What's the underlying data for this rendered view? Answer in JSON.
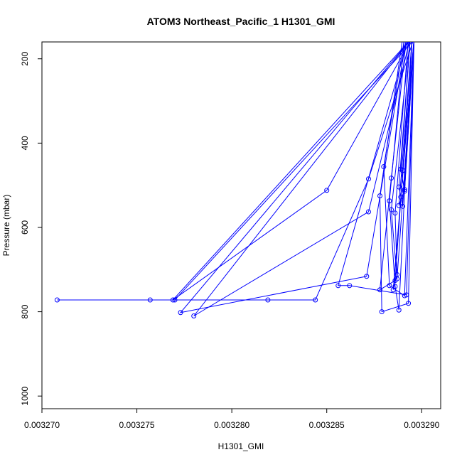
{
  "chart_data": {
    "type": "line",
    "title": "ATOM3 Northeast_Pacific_1 H1301_GMI",
    "xlabel": "H1301_GMI",
    "ylabel": "Pressure (mbar)",
    "xlim": [
      0.00327,
      0.003291
    ],
    "ylim": [
      1030,
      160
    ],
    "y_reversed": true,
    "x_ticks": [
      "0.003270",
      "0.003275",
      "0.003280",
      "0.003285",
      "0.003290"
    ],
    "x_tick_values": [
      0.00327,
      0.003275,
      0.00328,
      0.003285,
      0.00329
    ],
    "y_ticks": [
      "200",
      "400",
      "600",
      "800",
      "1000"
    ],
    "y_tick_values": [
      200,
      400,
      600,
      800,
      1000
    ],
    "series_color": "#0000ff",
    "grid": false,
    "marker": "open-circle",
    "series": [
      {
        "x": [
          0.0032897,
          0.003277,
          0.0032708,
          0.0032757,
          0.0032819,
          0.0032844,
          0.0032872,
          0.0032896
        ],
        "y": [
          150,
          772,
          772,
          772,
          772,
          772,
          485,
          150
        ]
      },
      {
        "x": [
          0.0032895,
          0.003285,
          0.0032769,
          0.0032895
        ],
        "y": [
          150,
          512,
          772,
          150
        ]
      },
      {
        "x": [
          0.0032894,
          0.0032872,
          0.003278,
          0.0032895
        ],
        "y": [
          150,
          563,
          810,
          150
        ]
      },
      {
        "x": [
          0.0032893,
          0.0032856,
          0.0032862,
          0.0032892,
          0.0032896
        ],
        "y": [
          150,
          738,
          738,
          760,
          150
        ]
      },
      {
        "x": [
          0.0032892,
          0.0032871,
          0.0032773,
          0.0032895
        ],
        "y": [
          150,
          716,
          802,
          150
        ]
      },
      {
        "x": [
          0.0032891,
          0.003288,
          0.0032883,
          0.0032891,
          0.0032896
        ],
        "y": [
          150,
          456,
          738,
          762,
          150
        ]
      },
      {
        "x": [
          0.003289,
          0.0032878,
          0.0032879,
          0.0032893,
          0.0032896
        ],
        "y": [
          150,
          525,
          800,
          780,
          150
        ]
      },
      {
        "x": [
          0.0032891,
          0.0032883,
          0.0032886,
          0.0032888,
          0.0032895
        ],
        "y": [
          150,
          537,
          740,
          796,
          150
        ]
      },
      {
        "x": [
          0.0032892,
          0.0032884,
          0.0032878,
          0.0032886,
          0.0032895
        ],
        "y": [
          150,
          483,
          748,
          726,
          150
        ]
      },
      {
        "x": [
          0.0032893,
          0.0032886,
          0.0032887,
          0.0032885,
          0.0032896
        ],
        "y": [
          150,
          566,
          712,
          748,
          150
        ]
      },
      {
        "x": [
          0.0032894,
          0.0032889,
          0.0032891,
          0.0032896
        ],
        "y": [
          150,
          462,
          514,
          150
        ]
      },
      {
        "x": [
          0.0032894,
          0.0032888,
          0.003289,
          0.0032896
        ],
        "y": [
          150,
          504,
          550,
          150
        ]
      },
      {
        "x": [
          0.0032895,
          0.003289,
          0.0032889,
          0.0032896
        ],
        "y": [
          150,
          465,
          528,
          150
        ]
      },
      {
        "x": [
          0.0032894,
          0.0032884,
          0.0032887,
          0.0032896
        ],
        "y": [
          150,
          558,
          722,
          150
        ]
      },
      {
        "x": [
          0.0032895,
          0.0032888,
          0.0032891,
          0.0032896
        ],
        "y": [
          150,
          548,
          510,
          150
        ]
      }
    ]
  }
}
